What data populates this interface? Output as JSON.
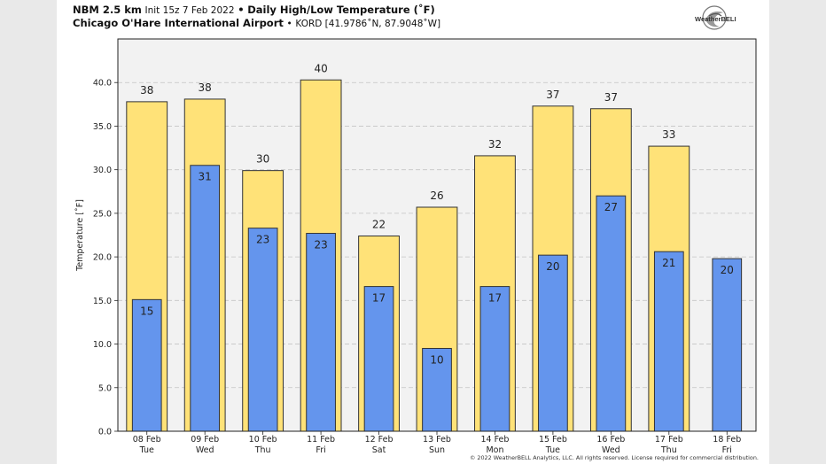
{
  "header": {
    "model": "NBM 2.5 km",
    "init": "Init 15z 7 Feb 2022",
    "bullet": "•",
    "product": "Daily High/Low Temperature (˚F)",
    "location": "Chicago O'Hare International Airport",
    "station": "KORD [41.9786˚N, 87.9048˚W]"
  },
  "logo": {
    "text": "WeatherBELL",
    "icon": "weatherbell-swirl-logo"
  },
  "copyright": "© 2022 WeatherBELL Analytics, LLC. All rights reserved. License required for commercial distribution.",
  "chart_data": {
    "type": "bar",
    "categories": [
      [
        "08 Feb",
        "Tue"
      ],
      [
        "09 Feb",
        "Wed"
      ],
      [
        "10 Feb",
        "Thu"
      ],
      [
        "11 Feb",
        "Fri"
      ],
      [
        "12 Feb",
        "Sat"
      ],
      [
        "13 Feb",
        "Sun"
      ],
      [
        "14 Feb",
        "Mon"
      ],
      [
        "15 Feb",
        "Tue"
      ],
      [
        "16 Feb",
        "Wed"
      ],
      [
        "17 Feb",
        "Thu"
      ],
      [
        "18 Feb",
        "Fri"
      ]
    ],
    "series": [
      {
        "values": [
          37.8,
          38.1,
          29.9,
          40.3,
          22.4,
          25.7,
          31.6,
          37.3,
          37.0,
          32.7,
          null
        ],
        "labels": [
          "38",
          "38",
          "30",
          "40",
          "22",
          "26",
          "32",
          "37",
          "37",
          "33",
          ""
        ],
        "color": "#ffe278"
      },
      {
        "values": [
          15.1,
          30.5,
          23.3,
          22.7,
          16.6,
          9.5,
          16.6,
          20.2,
          27.0,
          20.6,
          19.8
        ],
        "labels": [
          "15",
          "31",
          "23",
          "23",
          "17",
          "10",
          "17",
          "20",
          "27",
          "21",
          "20"
        ],
        "color": "#6495ed"
      }
    ],
    "ylabel": "Temperature [˚F]",
    "ylim": [
      0,
      45
    ],
    "yticks": [
      "0.0",
      "5.0",
      "10.0",
      "15.0",
      "20.0",
      "25.0",
      "30.0",
      "35.0",
      "40.0"
    ],
    "grid": true,
    "plot_background": "#f2f2f2"
  }
}
